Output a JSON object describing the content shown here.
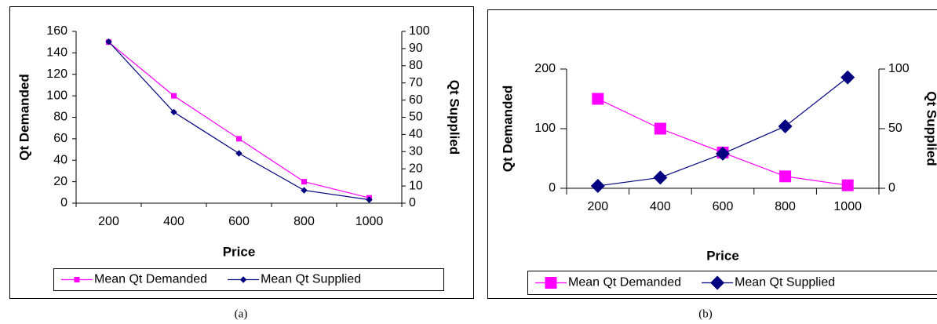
{
  "chart_data": [
    {
      "type": "line",
      "caption": "(a)",
      "xlabel": "Price",
      "ylabel": "Qt Demanded",
      "y2label": "Qt Supplied",
      "categories": [
        "200",
        "400",
        "600",
        "800",
        "1000"
      ],
      "series": [
        {
          "name": "Mean Qt Demanded",
          "color": "#ff00ff",
          "marker": "square",
          "values": [
            150,
            100,
            60,
            20,
            5
          ]
        },
        {
          "name": "Mean Qt Supplied",
          "color": "#000080",
          "marker": "diamond",
          "axis": "y2",
          "values": [
            94,
            53,
            29,
            7.5,
            2
          ]
        }
      ],
      "ylim": [
        0,
        160
      ],
      "yticks": [
        0,
        20,
        40,
        60,
        80,
        100,
        120,
        140,
        160
      ],
      "y2lim": [
        0,
        100
      ],
      "y2ticks": [
        0,
        10,
        20,
        30,
        40,
        50,
        60,
        70,
        80,
        90,
        100
      ],
      "grid": false,
      "legend": "bottom"
    },
    {
      "type": "line",
      "caption": "(b)",
      "xlabel": "Price",
      "ylabel": "Qt Demanded",
      "y2label": "Qt Supplied",
      "categories": [
        "200",
        "400",
        "600",
        "800",
        "1000"
      ],
      "series": [
        {
          "name": "Mean Qt Demanded",
          "color": "#ff00ff",
          "marker": "square",
          "values": [
            150,
            100,
            60,
            20,
            5
          ]
        },
        {
          "name": "Mean Qt Supplied",
          "color": "#000080",
          "marker": "diamond",
          "axis": "y2",
          "values": [
            2,
            9,
            29,
            52,
            93
          ]
        }
      ],
      "ylim": [
        0,
        200
      ],
      "yticks": [
        0,
        100,
        200
      ],
      "y2lim": [
        0,
        100
      ],
      "y2ticks": [
        0,
        50,
        100
      ],
      "grid": false,
      "legend": "bottom"
    }
  ]
}
